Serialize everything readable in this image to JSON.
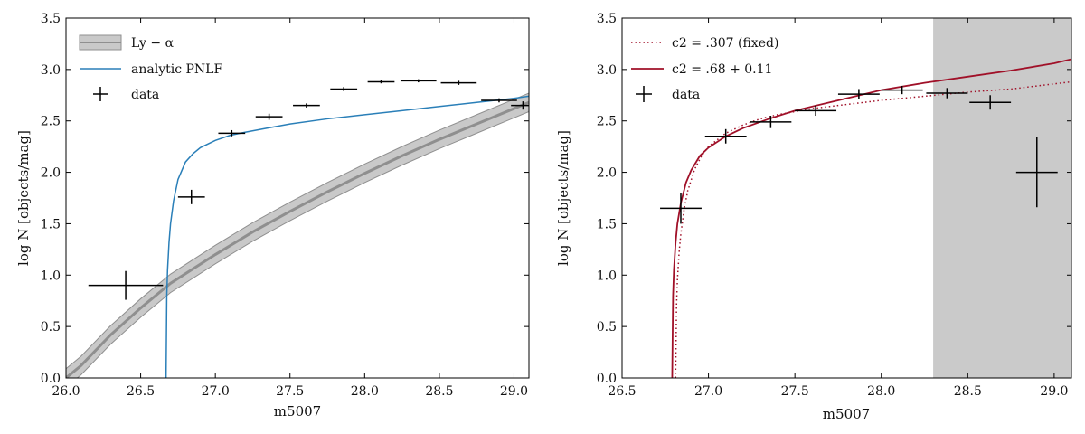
{
  "colors": {
    "band_fill": "#c9c9c9",
    "band_line": "#8f8f8f",
    "pnlf_blue": "#2a7fb8",
    "fit_red": "#a01028",
    "shade": "#cacaca",
    "errorbar": "#000000"
  },
  "chart_data": [
    {
      "type": "line",
      "xlabel": "m5007",
      "ylabel": "log N [objects/mag]",
      "xlim": [
        26.0,
        29.1
      ],
      "ylim": [
        0.0,
        3.5
      ],
      "xticks": [
        "26.0",
        "26.5",
        "27.0",
        "27.5",
        "28.0",
        "28.5",
        "29.0"
      ],
      "yticks": [
        "0.0",
        "0.5",
        "1.0",
        "1.5",
        "2.0",
        "2.5",
        "3.0",
        "3.5"
      ],
      "legend_position": "top-left",
      "legend": [
        "Ly − α",
        "analytic PNLF",
        "data"
      ],
      "lya_band": {
        "x": [
          26.0,
          26.1,
          26.3,
          26.5,
          26.7,
          27.0,
          27.25,
          27.5,
          27.75,
          28.0,
          28.25,
          28.5,
          28.75,
          29.0,
          29.1
        ],
        "y": [
          0.0,
          0.12,
          0.42,
          0.68,
          0.92,
          1.2,
          1.42,
          1.62,
          1.81,
          1.99,
          2.16,
          2.32,
          2.47,
          2.62,
          2.68
        ],
        "halfwidth": 0.09
      },
      "pnlf_curve": {
        "x": [
          26.67,
          26.675,
          26.68,
          26.69,
          26.7,
          26.72,
          26.75,
          26.8,
          26.85,
          26.9,
          27.0,
          27.1,
          27.2,
          27.35,
          27.5,
          27.75,
          28.0,
          28.25,
          28.5,
          28.75,
          29.0,
          29.1
        ],
        "y": [
          0.0,
          0.8,
          1.05,
          1.32,
          1.5,
          1.72,
          1.93,
          2.1,
          2.18,
          2.24,
          2.31,
          2.36,
          2.39,
          2.43,
          2.47,
          2.52,
          2.56,
          2.6,
          2.64,
          2.68,
          2.72,
          2.74
        ]
      },
      "data_points": [
        {
          "x": 26.4,
          "y": 0.9,
          "xerr": 0.25,
          "yerr": 0.14
        },
        {
          "x": 26.84,
          "y": 1.76,
          "xerr": 0.09,
          "yerr": 0.07
        },
        {
          "x": 27.11,
          "y": 2.38,
          "xerr": 0.09,
          "yerr": 0.03
        },
        {
          "x": 27.36,
          "y": 2.54,
          "xerr": 0.09,
          "yerr": 0.03
        },
        {
          "x": 27.61,
          "y": 2.65,
          "xerr": 0.09,
          "yerr": 0.02
        },
        {
          "x": 27.86,
          "y": 2.81,
          "xerr": 0.09,
          "yerr": 0.02
        },
        {
          "x": 28.11,
          "y": 2.88,
          "xerr": 0.09,
          "yerr": 0.015
        },
        {
          "x": 28.36,
          "y": 2.89,
          "xerr": 0.12,
          "yerr": 0.015
        },
        {
          "x": 28.63,
          "y": 2.87,
          "xerr": 0.12,
          "yerr": 0.02
        },
        {
          "x": 28.9,
          "y": 2.7,
          "xerr": 0.12,
          "yerr": 0.02
        },
        {
          "x": 29.06,
          "y": 2.65,
          "xerr": 0.08,
          "yerr": 0.04
        }
      ]
    },
    {
      "type": "line",
      "xlabel": "m5007",
      "ylabel": "log N [objects/mag]",
      "xlim": [
        26.5,
        29.1
      ],
      "ylim": [
        0.0,
        3.5
      ],
      "xticks": [
        "26.5",
        "27.0",
        "27.5",
        "28.0",
        "28.5",
        "29.0"
      ],
      "yticks": [
        "0.0",
        "0.5",
        "1.0",
        "1.5",
        "2.0",
        "2.5",
        "3.0",
        "3.5"
      ],
      "legend_position": "top-left",
      "legend": [
        "c2 = .307 (fixed)",
        "c2 = .68 + 0.11",
        "data"
      ],
      "shaded_region": {
        "x": [
          28.3,
          29.1
        ]
      },
      "fixed_curve": {
        "x": [
          26.81,
          26.815,
          26.82,
          26.83,
          26.84,
          26.86,
          26.88,
          26.92,
          26.96,
          27.0,
          27.1,
          27.2,
          27.3,
          27.4,
          27.5,
          27.6,
          27.75,
          28.0,
          28.25,
          28.5,
          28.75,
          29.0,
          29.1
        ],
        "y": [
          0.0,
          0.7,
          0.95,
          1.22,
          1.4,
          1.65,
          1.82,
          2.03,
          2.16,
          2.25,
          2.38,
          2.46,
          2.52,
          2.56,
          2.59,
          2.62,
          2.65,
          2.7,
          2.74,
          2.78,
          2.81,
          2.86,
          2.88
        ]
      },
      "fit_curve": {
        "x": [
          26.79,
          26.795,
          26.8,
          26.81,
          26.82,
          26.84,
          26.87,
          26.9,
          26.95,
          27.0,
          27.1,
          27.2,
          27.35,
          27.5,
          27.75,
          28.0,
          28.25,
          28.5,
          28.75,
          29.0,
          29.1
        ],
        "y": [
          0.0,
          0.8,
          1.05,
          1.32,
          1.5,
          1.7,
          1.9,
          2.02,
          2.16,
          2.24,
          2.35,
          2.43,
          2.52,
          2.6,
          2.7,
          2.8,
          2.87,
          2.93,
          2.99,
          3.06,
          3.1
        ]
      },
      "data_points": [
        {
          "x": 26.84,
          "y": 1.65,
          "xerr": 0.12,
          "yerr": 0.15
        },
        {
          "x": 27.1,
          "y": 2.35,
          "xerr": 0.12,
          "yerr": 0.07
        },
        {
          "x": 27.36,
          "y": 2.49,
          "xerr": 0.12,
          "yerr": 0.06
        },
        {
          "x": 27.62,
          "y": 2.6,
          "xerr": 0.12,
          "yerr": 0.05
        },
        {
          "x": 27.87,
          "y": 2.76,
          "xerr": 0.12,
          "yerr": 0.05
        },
        {
          "x": 28.12,
          "y": 2.8,
          "xerr": 0.12,
          "yerr": 0.04
        },
        {
          "x": 28.38,
          "y": 2.77,
          "xerr": 0.12,
          "yerr": 0.05
        },
        {
          "x": 28.63,
          "y": 2.68,
          "xerr": 0.12,
          "yerr": 0.07
        },
        {
          "x": 28.9,
          "y": 2.0,
          "xerr": 0.12,
          "yerr": 0.34
        }
      ]
    }
  ]
}
